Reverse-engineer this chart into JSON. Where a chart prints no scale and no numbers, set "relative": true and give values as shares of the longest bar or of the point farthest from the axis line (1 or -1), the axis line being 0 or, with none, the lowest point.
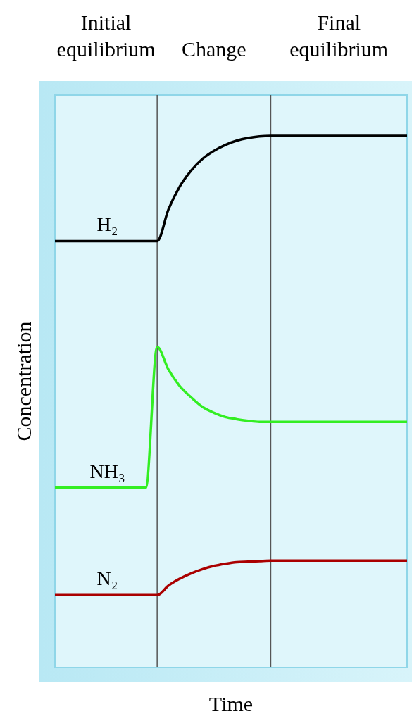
{
  "chart_data": {
    "type": "line",
    "relative": true,
    "xlabel": "Time",
    "ylabel": "Concentration",
    "categories": [
      null,
      null,
      null,
      null,
      null,
      null,
      null,
      null,
      null,
      null,
      null,
      null,
      null,
      null,
      null,
      null,
      null,
      null,
      null,
      null,
      null,
      null,
      null,
      null,
      null,
      null,
      null,
      null,
      null,
      null,
      null,
      null
    ],
    "series": [
      {
        "name": "H₂",
        "color": "#000000",
        "values": [
          0.802,
          0.802,
          0.802,
          0.802,
          0.802,
          0.802,
          0.802,
          0.802,
          0.802,
          0.802,
          0.862,
          0.905,
          0.935,
          0.957,
          0.972,
          0.983,
          0.991,
          0.996,
          0.999,
          1,
          1,
          1,
          1,
          1,
          1,
          1,
          1,
          1,
          1,
          1,
          1,
          1
        ]
      },
      {
        "name": "NH₃",
        "color": "#33ee22",
        "values": [
          0.338,
          0.338,
          0.338,
          0.338,
          0.338,
          0.338,
          0.338,
          0.338,
          0.338,
          0.603,
          0.56,
          0.529,
          0.508,
          0.49,
          0.479,
          0.471,
          0.467,
          0.464,
          0.462,
          0.462,
          0.462,
          0.462,
          0.462,
          0.462,
          0.462,
          0.462,
          0.462,
          0.462,
          0.462,
          0.462,
          0.462,
          0.462
        ]
      },
      {
        "name": "N₂",
        "color": "#aa0000",
        "values": [
          0.136,
          0.136,
          0.136,
          0.136,
          0.136,
          0.136,
          0.136,
          0.136,
          0.136,
          0.136,
          0.154,
          0.167,
          0.177,
          0.185,
          0.191,
          0.195,
          0.198,
          0.199,
          0.2,
          0.201,
          0.201,
          0.201,
          0.201,
          0.201,
          0.201,
          0.201,
          0.201,
          0.201,
          0.201,
          0.201,
          0.201,
          0.201
        ]
      }
    ],
    "annotations": [
      "Initial equilibrium",
      "Change",
      "Final equilibrium"
    ]
  }
}
